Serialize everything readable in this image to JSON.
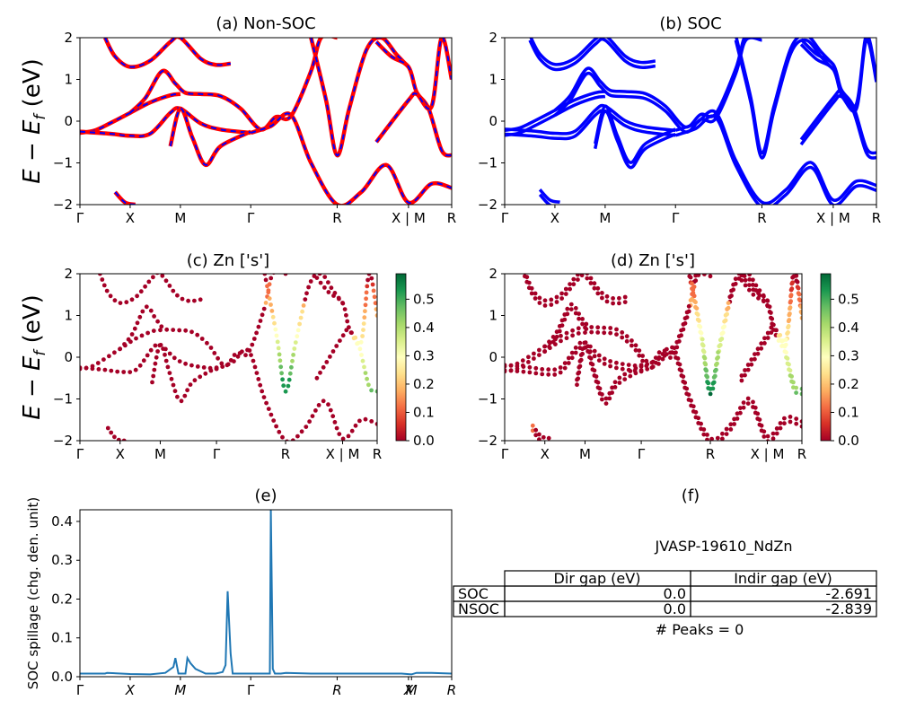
{
  "chart_data": [
    {
      "id": "a",
      "type": "line",
      "title": "(a) Non-SOC",
      "ylabel": "E − E",
      "ylabel_sub": "f",
      "ylabel_unit": " (eV)",
      "ylim": [
        -2,
        2
      ],
      "yticks": [
        "2",
        "1",
        "0",
        "−1",
        "−2"
      ],
      "xticks": [
        "Γ",
        "X",
        "M",
        "Γ",
        "R",
        "X | M",
        "R"
      ],
      "xtick_pos": [
        0,
        0.5,
        1.0,
        1.7,
        2.56,
        3.27,
        3.7
      ],
      "xlim": [
        0,
        3.7
      ],
      "line_color": "#ff0000",
      "dash_color": "#0000ff",
      "series": [
        {
          "x": [
            0,
            0.15,
            0.3,
            0.5,
            0.7,
            0.9,
            1.0
          ],
          "y": [
            -0.28,
            -0.22,
            -0.05,
            0.2,
            0.45,
            0.62,
            0.65
          ]
        },
        {
          "x": [
            0,
            0.3,
            0.5,
            0.7,
            0.9,
            1.0,
            1.2,
            1.4,
            1.7
          ],
          "y": [
            -0.25,
            -0.3,
            -0.35,
            -0.3,
            0.2,
            0.3,
            -0.05,
            -0.2,
            -0.28
          ]
        },
        {
          "x": [
            0.25,
            0.35,
            0.5,
            0.7,
            0.9,
            1.0,
            1.2,
            1.35,
            1.5
          ],
          "y": [
            2.0,
            1.55,
            1.3,
            1.45,
            1.9,
            2.0,
            1.5,
            1.35,
            1.38
          ]
        },
        {
          "x": [
            0.5,
            0.65,
            0.82,
            0.95,
            1.05,
            1.2,
            1.4,
            1.6,
            1.8,
            1.95,
            2.1,
            2.3,
            2.4,
            2.56
          ],
          "y": [
            0.2,
            0.55,
            1.2,
            0.9,
            0.68,
            0.65,
            0.6,
            0.3,
            -0.2,
            0.1,
            0.12,
            1.2,
            2.0,
            2.0
          ]
        },
        {
          "x": [
            0.9,
            1.0,
            1.12,
            1.25,
            1.4,
            1.7
          ],
          "y": [
            -0.6,
            0.3,
            -0.4,
            -1.05,
            -0.6,
            -0.25
          ]
        },
        {
          "x": [
            0.35,
            0.45,
            0.55
          ],
          "y": [
            -1.7,
            -1.95,
            -2.0
          ]
        },
        {
          "x": [
            1.7,
            1.9,
            2.1,
            2.3,
            2.56,
            2.8,
            3.05,
            3.27,
            3.5,
            3.7
          ],
          "y": [
            -0.28,
            -0.12,
            0.15,
            -1.0,
            -2.0,
            -1.7,
            -1.05,
            -1.95,
            -1.5,
            -1.6
          ]
        },
        {
          "x": [
            2.3,
            2.45,
            2.56,
            2.68,
            2.85,
            3.0,
            3.15,
            3.27
          ],
          "y": [
            2.0,
            0.5,
            -0.82,
            0.3,
            1.7,
            2.0,
            1.6,
            1.3
          ]
        },
        {
          "x": [
            2.95,
            3.1,
            3.27,
            3.35,
            3.47,
            3.6,
            3.7
          ],
          "y": [
            1.9,
            1.55,
            1.3,
            0.7,
            0.3,
            -0.7,
            -0.82
          ]
        },
        {
          "x": [
            2.95,
            3.27,
            3.35,
            3.5,
            3.6,
            3.7
          ],
          "y": [
            -0.5,
            0.5,
            0.65,
            0.35,
            2.0,
            1.0
          ]
        }
      ]
    },
    {
      "id": "b",
      "type": "line",
      "title": "(b) SOC",
      "ylim": [
        -2,
        2
      ],
      "yticks": [
        "2",
        "1",
        "0",
        "−1",
        "−2"
      ],
      "xticks": [
        "Γ",
        "X",
        "M",
        "Γ",
        "R",
        "X | M",
        "R"
      ],
      "xtick_pos": [
        0,
        0.5,
        1.0,
        1.7,
        2.56,
        3.27,
        3.7
      ],
      "xlim": [
        0,
        3.7
      ],
      "line_color": "#0000ff"
    },
    {
      "id": "c",
      "type": "scatter",
      "title": "(c)  Zn ['s']",
      "ylabel": "E − E",
      "ylabel_sub": "f",
      "ylabel_unit": " (eV)",
      "ylim": [
        -2,
        2
      ],
      "yticks": [
        "2",
        "1",
        "0",
        "−1",
        "−2"
      ],
      "xticks": [
        "Γ",
        "X",
        "M",
        "Γ",
        "R",
        "X | M",
        "R"
      ],
      "xtick_pos": [
        0,
        0.5,
        1.0,
        1.7,
        2.56,
        3.27,
        3.7
      ],
      "xlim": [
        0,
        3.7
      ],
      "colorbar": {
        "ticks": [
          "0.5",
          "0.4",
          "0.3",
          "0.2",
          "0.1",
          "0.0"
        ],
        "range": [
          0,
          0.59
        ]
      }
    },
    {
      "id": "d",
      "type": "scatter",
      "title": "(d) Zn ['s']",
      "ylim": [
        -2,
        2
      ],
      "yticks": [
        "2",
        "1",
        "0",
        "−1",
        "−2"
      ],
      "xticks": [
        "Γ",
        "X",
        "M",
        "Γ",
        "R",
        "X | M",
        "R"
      ],
      "xtick_pos": [
        0,
        0.5,
        1.0,
        1.7,
        2.56,
        3.27,
        3.7
      ],
      "xlim": [
        0,
        3.7
      ],
      "colorbar": {
        "ticks": [
          "0.5",
          "0.4",
          "0.3",
          "0.2",
          "0.1",
          "0.0"
        ],
        "range": [
          0,
          0.59
        ]
      }
    },
    {
      "id": "e",
      "type": "line",
      "title": "(e)",
      "ylabel": "SOC spillage (chg. den. unit)",
      "ylim": [
        0,
        0.43
      ],
      "yticks": [
        "0.4",
        "0.3",
        "0.2",
        "0.1",
        "0.0"
      ],
      "ytick_vals": [
        0.4,
        0.3,
        0.2,
        0.1,
        0.0
      ],
      "xticks": [
        "Γ",
        "X",
        "M",
        "Γ",
        "R",
        "X",
        "M",
        "R"
      ],
      "xtick_pos": [
        0,
        0.5,
        1.0,
        1.7,
        2.56,
        3.27,
        3.3,
        3.7
      ],
      "xlim": [
        0,
        3.7
      ],
      "line_color": "#1f77b4",
      "x": [
        0,
        0.25,
        0.27,
        0.5,
        0.7,
        0.85,
        0.93,
        0.95,
        0.98,
        1.05,
        1.07,
        1.1,
        1.15,
        1.25,
        1.35,
        1.42,
        1.45,
        1.47,
        1.5,
        1.52,
        1.7,
        1.89,
        1.9,
        1.92,
        1.94,
        2.0,
        2.05,
        2.3,
        2.56,
        2.9,
        3.2,
        3.3,
        3.35,
        3.5,
        3.7
      ],
      "y": [
        0.008,
        0.008,
        0.01,
        0.007,
        0.006,
        0.01,
        0.025,
        0.048,
        0.008,
        0.008,
        0.048,
        0.035,
        0.02,
        0.008,
        0.008,
        0.012,
        0.03,
        0.22,
        0.06,
        0.008,
        0.008,
        0.008,
        0.43,
        0.02,
        0.008,
        0.008,
        0.01,
        0.008,
        0.008,
        0.008,
        0.008,
        0.006,
        0.01,
        0.01,
        0.008
      ]
    }
  ],
  "panel_f": {
    "title": "(f)",
    "material": "JVASP-19610_NdZn",
    "headers": [
      "Dir gap (eV)",
      "Indir gap (eV)"
    ],
    "rows": [
      {
        "label": "SOC",
        "dir": "0.0",
        "indir": "-2.691"
      },
      {
        "label": "NSOC",
        "dir": "0.0",
        "indir": "-2.839"
      }
    ],
    "peaks": "# Peaks = 0"
  }
}
